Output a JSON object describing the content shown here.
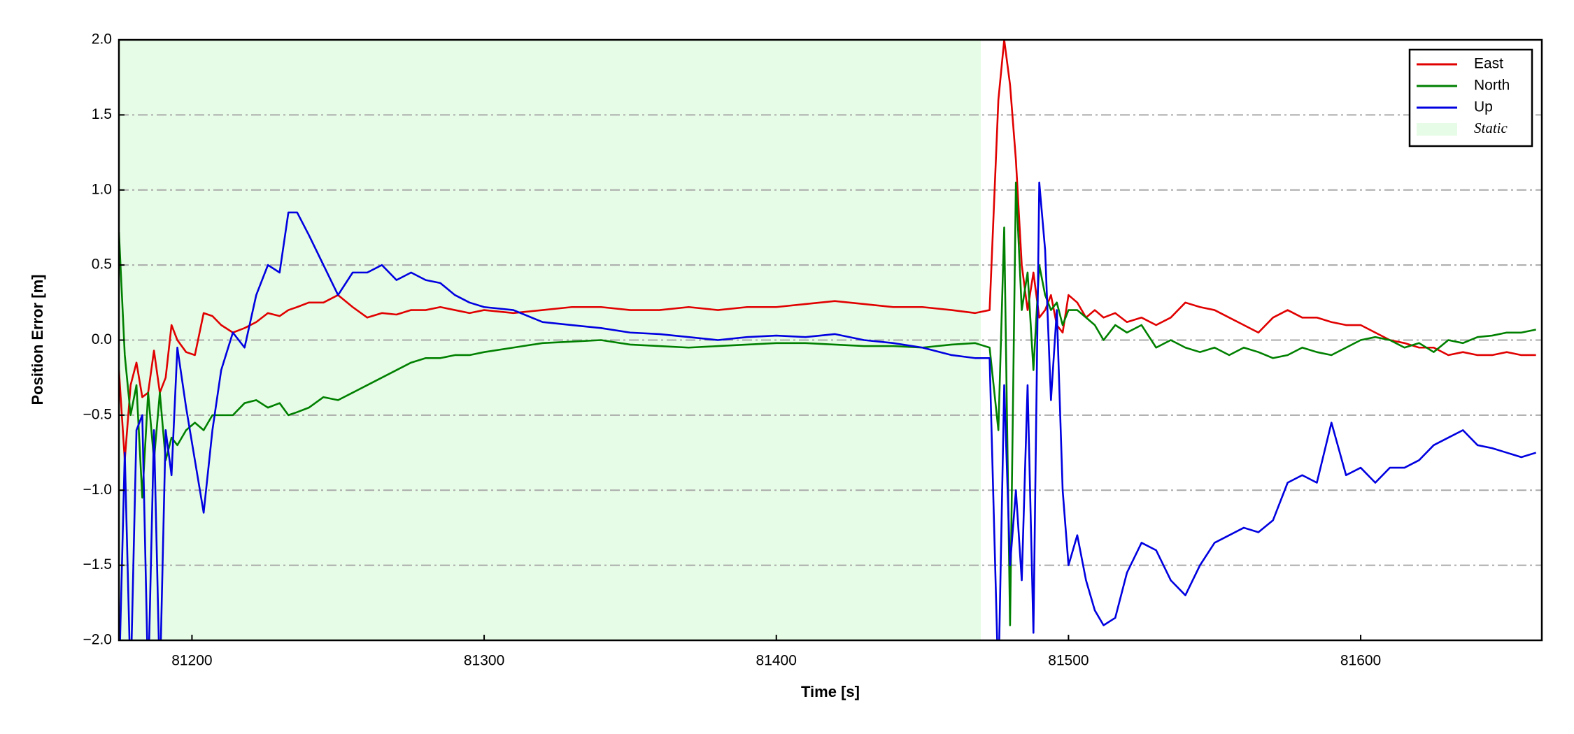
{
  "chart_data": {
    "type": "line",
    "xlabel": "Time [s]",
    "ylabel": "Position Error [m]",
    "xlim": [
      81175,
      81662
    ],
    "ylim": [
      -2,
      2
    ],
    "xticks": [
      81200,
      81300,
      81400,
      81500,
      81600
    ],
    "yticks": [
      {
        "value": -2,
        "label": "−2.0"
      },
      {
        "value": -1.5,
        "label": "−1.5"
      },
      {
        "value": -1,
        "label": "−1.0"
      },
      {
        "value": -0.5,
        "label": "−0.5"
      },
      {
        "value": 0,
        "label": "0.0"
      },
      {
        "value": 0.5,
        "label": "0.5"
      },
      {
        "value": 1,
        "label": "1.0"
      },
      {
        "value": 1.5,
        "label": "1.5"
      },
      {
        "value": 2,
        "label": "2.0"
      }
    ],
    "grid": true,
    "legend": "upper right",
    "spans": [
      {
        "name": "Static",
        "x0": 81175,
        "x1": 81470,
        "color": "#e6fce6"
      }
    ],
    "x": [
      81175,
      81177,
      81179,
      81181,
      81183,
      81185,
      81187,
      81189,
      81191,
      81193,
      81195,
      81198,
      81201,
      81204,
      81207,
      81210,
      81214,
      81218,
      81222,
      81226,
      81230,
      81233,
      81236,
      81240,
      81245,
      81250,
      81255,
      81260,
      81265,
      81270,
      81275,
      81280,
      81285,
      81290,
      81295,
      81300,
      81310,
      81320,
      81330,
      81340,
      81350,
      81360,
      81370,
      81380,
      81390,
      81400,
      81410,
      81420,
      81430,
      81440,
      81450,
      81460,
      81468,
      81473,
      81476,
      81478,
      81480,
      81482,
      81484,
      81486,
      81488,
      81490,
      81492,
      81494,
      81496,
      81498,
      81500,
      81503,
      81506,
      81509,
      81512,
      81516,
      81520,
      81525,
      81530,
      81535,
      81540,
      81545,
      81550,
      81555,
      81560,
      81565,
      81570,
      81575,
      81580,
      81585,
      81590,
      81595,
      81600,
      81605,
      81610,
      81615,
      81620,
      81625,
      81630,
      81635,
      81640,
      81645,
      81650,
      81655,
      81660
    ],
    "series": [
      {
        "name": "East",
        "color": "#e00000",
        "values": [
          -0.2,
          -0.8,
          -0.3,
          -0.15,
          -0.38,
          -0.35,
          -0.07,
          -0.35,
          -0.25,
          0.1,
          0.0,
          -0.08,
          -0.1,
          0.18,
          0.16,
          0.1,
          0.05,
          0.08,
          0.12,
          0.18,
          0.16,
          0.2,
          0.22,
          0.25,
          0.25,
          0.3,
          0.22,
          0.15,
          0.18,
          0.17,
          0.2,
          0.2,
          0.22,
          0.2,
          0.18,
          0.2,
          0.18,
          0.2,
          0.22,
          0.22,
          0.2,
          0.2,
          0.22,
          0.2,
          0.22,
          0.22,
          0.24,
          0.26,
          0.24,
          0.22,
          0.22,
          0.2,
          0.18,
          0.2,
          1.6,
          2.0,
          1.7,
          1.2,
          0.5,
          0.2,
          0.45,
          0.15,
          0.2,
          0.3,
          0.1,
          0.05,
          0.3,
          0.25,
          0.15,
          0.2,
          0.15,
          0.18,
          0.12,
          0.15,
          0.1,
          0.15,
          0.25,
          0.22,
          0.2,
          0.15,
          0.1,
          0.05,
          0.15,
          0.2,
          0.15,
          0.15,
          0.12,
          0.1,
          0.1,
          0.05,
          0.0,
          -0.02,
          -0.05,
          -0.05,
          -0.1,
          -0.08,
          -0.1,
          -0.1,
          -0.08,
          -0.1,
          -0.1
        ]
      },
      {
        "name": "North",
        "color": "#008000",
        "values": [
          0.72,
          -0.1,
          -0.5,
          -0.3,
          -1.05,
          -0.35,
          -0.8,
          -0.35,
          -0.8,
          -0.65,
          -0.7,
          -0.6,
          -0.55,
          -0.6,
          -0.5,
          -0.5,
          -0.5,
          -0.42,
          -0.4,
          -0.45,
          -0.42,
          -0.5,
          -0.48,
          -0.45,
          -0.38,
          -0.4,
          -0.35,
          -0.3,
          -0.25,
          -0.2,
          -0.15,
          -0.12,
          -0.12,
          -0.1,
          -0.1,
          -0.08,
          -0.05,
          -0.02,
          -0.01,
          0.0,
          -0.03,
          -0.04,
          -0.05,
          -0.04,
          -0.03,
          -0.02,
          -0.02,
          -0.03,
          -0.04,
          -0.04,
          -0.05,
          -0.03,
          -0.02,
          -0.05,
          -0.6,
          0.75,
          -1.9,
          1.05,
          0.2,
          0.45,
          -0.2,
          0.5,
          0.3,
          0.2,
          0.25,
          0.1,
          0.2,
          0.2,
          0.15,
          0.1,
          0.0,
          0.1,
          0.05,
          0.1,
          -0.05,
          0.0,
          -0.05,
          -0.08,
          -0.05,
          -0.1,
          -0.05,
          -0.08,
          -0.12,
          -0.1,
          -0.05,
          -0.08,
          -0.1,
          -0.05,
          0.0,
          0.02,
          0.0,
          -0.05,
          -0.02,
          -0.08,
          0.0,
          -0.02,
          0.02,
          0.03,
          0.05,
          0.05,
          0.07
        ]
      },
      {
        "name": "Up",
        "color": "#0000e0",
        "values": [
          -2.3,
          -0.75,
          -2.3,
          -0.6,
          -0.5,
          -2.3,
          -0.6,
          -2.3,
          -0.6,
          -0.9,
          -0.05,
          -0.45,
          -0.8,
          -1.15,
          -0.6,
          -0.2,
          0.05,
          -0.05,
          0.3,
          0.5,
          0.45,
          0.85,
          0.85,
          0.7,
          0.5,
          0.3,
          0.45,
          0.45,
          0.5,
          0.4,
          0.45,
          0.4,
          0.38,
          0.3,
          0.25,
          0.22,
          0.2,
          0.12,
          0.1,
          0.08,
          0.05,
          0.04,
          0.02,
          0.0,
          0.02,
          0.03,
          0.02,
          0.04,
          0.0,
          -0.02,
          -0.05,
          -0.1,
          -0.12,
          -0.12,
          -2.3,
          -0.3,
          -1.5,
          -1.0,
          -1.6,
          -0.3,
          -1.95,
          1.05,
          0.6,
          -0.4,
          0.2,
          -1.0,
          -1.5,
          -1.3,
          -1.6,
          -1.8,
          -1.9,
          -1.85,
          -1.55,
          -1.35,
          -1.4,
          -1.6,
          -1.7,
          -1.5,
          -1.35,
          -1.3,
          -1.25,
          -1.28,
          -1.2,
          -0.95,
          -0.9,
          -0.95,
          -0.55,
          -0.9,
          -0.85,
          -0.95,
          -0.85,
          -0.85,
          -0.8,
          -0.7,
          -0.65,
          -0.6,
          -0.7,
          -0.72,
          -0.75,
          -0.78,
          -0.75
        ]
      }
    ]
  }
}
